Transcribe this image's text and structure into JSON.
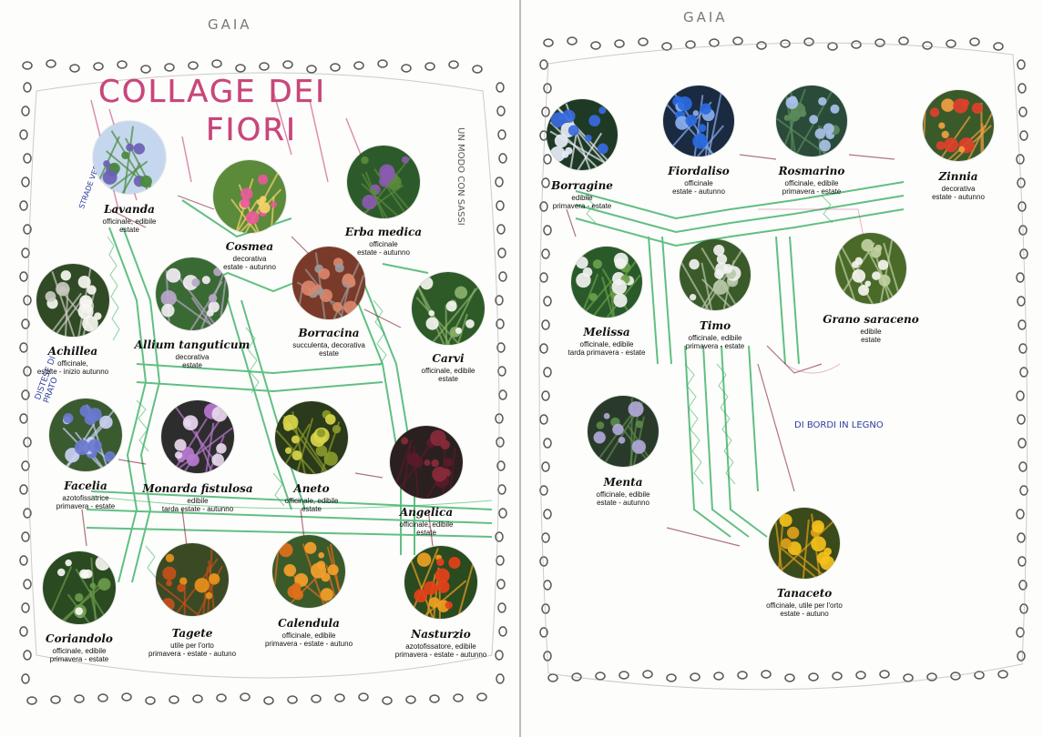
{
  "colors": {
    "title_pink": "#c8467a",
    "grass_green": "#2eab5a",
    "outline_grey": "#555555",
    "note_blue": "#2c3d9c"
  },
  "left_page": {
    "author": "GAIA",
    "title_line1": "COLLAGE DEI",
    "title_line2": "FIORI",
    "notes": {
      "side_top": "UN MODO CON SASSI",
      "side_left_top": "STRADE VERSO VERDI",
      "side_left_mid": "DISTESE DI PRATO"
    },
    "flowers": [
      {
        "name": "Lavanda",
        "line1": "officinale, edibile",
        "line2": "estate",
        "icon": "lavender-photo"
      },
      {
        "name": "Cosmea",
        "line1": "decorativa",
        "line2": "estate - autunno",
        "icon": "cosmos-photo"
      },
      {
        "name": "Erba medica",
        "line1": "officinale",
        "line2": "estate - autunno",
        "icon": "alfalfa-photo"
      },
      {
        "name": "Achillea",
        "line1": "officinale,",
        "line2": "estate - inizio autunno",
        "icon": "yarrow-photo"
      },
      {
        "name": "Allium tanguticum",
        "line1": "decorativa",
        "line2": "estate",
        "icon": "allium-photo"
      },
      {
        "name": "Borracina",
        "line1": "succulenta, decorativa",
        "line2": "estate",
        "icon": "sedum-photo"
      },
      {
        "name": "Carvi",
        "line1": "officinale, edibile",
        "line2": "estate",
        "icon": "caraway-photo"
      },
      {
        "name": "Facelia",
        "line1": "azotofissatrice",
        "line2": "primavera - estate",
        "icon": "phacelia-photo"
      },
      {
        "name": "Monarda fistulosa",
        "line1": "edibile",
        "line2": "tarda estate - autunno",
        "icon": "monarda-photo"
      },
      {
        "name": "Aneto",
        "line1": "officinale, edibile",
        "line2": "estate",
        "icon": "dill-photo"
      },
      {
        "name": "Angelica",
        "line1": "officinale, edibile",
        "line2": "estate",
        "icon": "angelica-photo"
      },
      {
        "name": "Coriandolo",
        "line1": "officinale, edibile",
        "line2": "primavera - estate",
        "icon": "coriander-photo"
      },
      {
        "name": "Tagete",
        "line1": "utile per l'orto",
        "line2": "primavera - estate - autuno",
        "icon": "marigold-photo"
      },
      {
        "name": "Calendula",
        "line1": "officinale, edibile",
        "line2": "primavera - estate - autuno",
        "icon": "calendula-photo"
      },
      {
        "name": "Nasturzio",
        "line1": "azotofissatore, edibile",
        "line2": "primavera - estate - autunno",
        "icon": "nasturtium-photo"
      }
    ]
  },
  "right_page": {
    "author": "GAIA",
    "notes": {
      "border_note": "DI BORDI IN LEGNO"
    },
    "flowers": [
      {
        "name": "Borragine",
        "line1": "edibile",
        "line2": "primavera - estate",
        "icon": "borage-photo"
      },
      {
        "name": "Fiordaliso",
        "line1": "officinale",
        "line2": "estate - autunno",
        "icon": "cornflower-photo"
      },
      {
        "name": "Rosmarino",
        "line1": "officinale, edibile",
        "line2": "primavera - estate",
        "icon": "rosemary-photo"
      },
      {
        "name": "Zinnia",
        "line1": "decorativa",
        "line2": "estate - autunno",
        "icon": "zinnia-photo"
      },
      {
        "name": "Melissa",
        "line1": "officinale, edibile",
        "line2": "tarda primavera - estate",
        "icon": "melissa-photo"
      },
      {
        "name": "Timo",
        "line1": "officinale, edibile",
        "line2": "primavera - estate",
        "icon": "thyme-photo"
      },
      {
        "name": "Grano saraceno",
        "line1": "edibile",
        "line2": "estate",
        "icon": "buckwheat-photo"
      },
      {
        "name": "Menta",
        "line1": "officinale, edibile",
        "line2": "estate - autunno",
        "icon": "mint-photo"
      },
      {
        "name": "Tanaceto",
        "line1": "officinale, utile per l'orto",
        "line2": "estate - autuno",
        "icon": "tansy-photo"
      }
    ]
  }
}
